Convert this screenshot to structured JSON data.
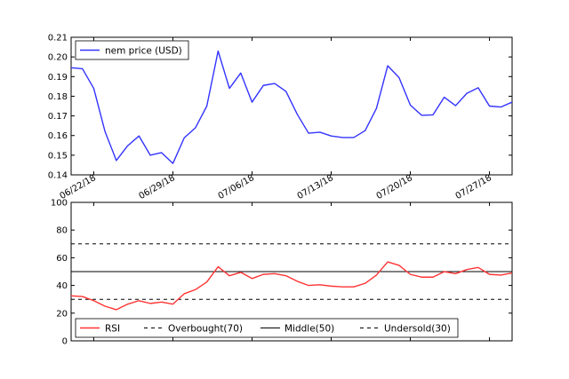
{
  "chart_data": [
    {
      "type": "line",
      "x_tick_labels": [
        "06/22/18",
        "06/29/18",
        "07/06/18",
        "07/13/18",
        "07/20/18",
        "07/27/18"
      ],
      "x_tick_indices": [
        2,
        9,
        16,
        23,
        30,
        37
      ],
      "ylim": [
        0.14,
        0.21
      ],
      "yticks": [
        "0.14",
        "0.15",
        "0.16",
        "0.17",
        "0.18",
        "0.19",
        "0.20",
        "0.21"
      ],
      "grid": false,
      "legend_position": "top-left",
      "series": [
        {
          "name": "nem price (USD)",
          "color": "#3333ff",
          "values": [
            0.1945,
            0.194,
            0.184,
            0.162,
            0.1473,
            0.1548,
            0.1598,
            0.15,
            0.1513,
            0.1458,
            0.1588,
            0.164,
            0.175,
            0.203,
            0.184,
            0.1918,
            0.177,
            0.1855,
            0.1865,
            0.1825,
            0.1708,
            0.1612,
            0.1617,
            0.1598,
            0.159,
            0.159,
            0.1625,
            0.1738,
            0.1955,
            0.1895,
            0.1755,
            0.1703,
            0.1705,
            0.1795,
            0.1752,
            0.1815,
            0.1843,
            0.175,
            0.1745,
            0.177
          ]
        }
      ]
    },
    {
      "type": "line",
      "ylim": [
        0,
        100
      ],
      "yticks": [
        "0",
        "20",
        "40",
        "60",
        "80",
        "100"
      ],
      "grid": false,
      "legend_position": "bottom",
      "series": [
        {
          "name": "RSI",
          "color": "#ff3333",
          "values": [
            32.5,
            32.0,
            29.0,
            25.0,
            22.5,
            26.5,
            29.0,
            27.0,
            28.0,
            26.5,
            34.0,
            37.0,
            42.5,
            53.5,
            47.0,
            49.5,
            45.0,
            48.0,
            48.5,
            47.0,
            43.0,
            40.0,
            40.5,
            39.5,
            39.0,
            39.0,
            41.5,
            47.5,
            57.0,
            54.5,
            48.0,
            46.0,
            46.0,
            50.0,
            48.5,
            51.5,
            53.0,
            48.0,
            47.5,
            49.0
          ]
        },
        {
          "name": "Overbought(70)",
          "color": "#000000",
          "style": "dashed",
          "value": 70
        },
        {
          "name": "Middle(50)",
          "color": "#000000",
          "style": "solid",
          "value": 50
        },
        {
          "name": "Undersold(30)",
          "color": "#000000",
          "style": "dashed",
          "value": 30
        }
      ]
    }
  ]
}
